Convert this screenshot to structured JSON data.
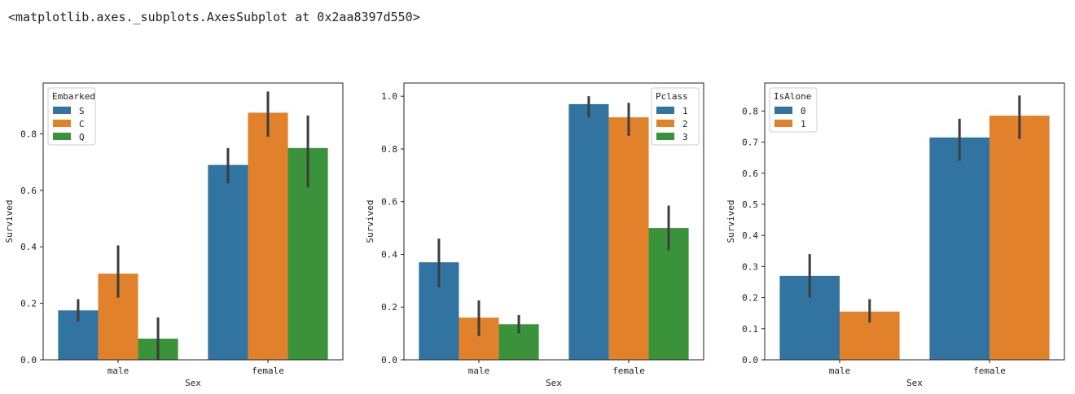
{
  "output_text": "<matplotlib.axes._subplots.AxesSubplot at 0x2aa8397d550>",
  "chart_data": [
    {
      "type": "bar",
      "xlabel": "Sex",
      "ylabel": "Survived",
      "categories": [
        "male",
        "female"
      ],
      "ylim": [
        0,
        0.98
      ],
      "yticks": [
        "0.0",
        "0.2",
        "0.4",
        "0.6",
        "0.8"
      ],
      "legend": {
        "title": "Embarked",
        "placement": "top-left"
      },
      "series": [
        {
          "name": "S",
          "color": "#3274a1",
          "values": [
            0.175,
            0.69
          ],
          "ci": [
            [
              0.135,
              0.215
            ],
            [
              0.625,
              0.75
            ]
          ]
        },
        {
          "name": "C",
          "color": "#e1812c",
          "values": [
            0.305,
            0.875
          ],
          "ci": [
            [
              0.22,
              0.405
            ],
            [
              0.79,
              0.95
            ]
          ]
        },
        {
          "name": "Q",
          "color": "#3a923a",
          "values": [
            0.075,
            0.75
          ],
          "ci": [
            [
              0.0,
              0.15
            ],
            [
              0.61,
              0.865
            ]
          ]
        }
      ]
    },
    {
      "type": "bar",
      "xlabel": "Sex",
      "ylabel": "Survived",
      "categories": [
        "male",
        "female"
      ],
      "ylim": [
        0,
        1.05
      ],
      "yticks": [
        "0.0",
        "0.2",
        "0.4",
        "0.6",
        "0.8",
        "1.0"
      ],
      "legend": {
        "title": "Pclass",
        "placement": "top-right"
      },
      "series": [
        {
          "name": "1",
          "color": "#3274a1",
          "values": [
            0.37,
            0.97
          ],
          "ci": [
            [
              0.275,
              0.46
            ],
            [
              0.92,
              1.0
            ]
          ]
        },
        {
          "name": "2",
          "color": "#e1812c",
          "values": [
            0.16,
            0.92
          ],
          "ci": [
            [
              0.09,
              0.225
            ],
            [
              0.85,
              0.975
            ]
          ]
        },
        {
          "name": "3",
          "color": "#3a923a",
          "values": [
            0.135,
            0.5
          ],
          "ci": [
            [
              0.1,
              0.17
            ],
            [
              0.415,
              0.585
            ]
          ]
        }
      ]
    },
    {
      "type": "bar",
      "xlabel": "Sex",
      "ylabel": "Survived",
      "categories": [
        "male",
        "female"
      ],
      "ylim": [
        0,
        0.89
      ],
      "yticks": [
        "0.0",
        "0.1",
        "0.2",
        "0.3",
        "0.4",
        "0.5",
        "0.6",
        "0.7",
        "0.8"
      ],
      "legend": {
        "title": "IsAlone",
        "placement": "top-left"
      },
      "series": [
        {
          "name": "0",
          "color": "#3274a1",
          "values": [
            0.27,
            0.715
          ],
          "ci": [
            [
              0.2,
              0.34
            ],
            [
              0.64,
              0.775
            ]
          ]
        },
        {
          "name": "1",
          "color": "#e1812c",
          "values": [
            0.155,
            0.785
          ],
          "ci": [
            [
              0.12,
              0.195
            ],
            [
              0.71,
              0.85
            ]
          ]
        }
      ]
    }
  ]
}
